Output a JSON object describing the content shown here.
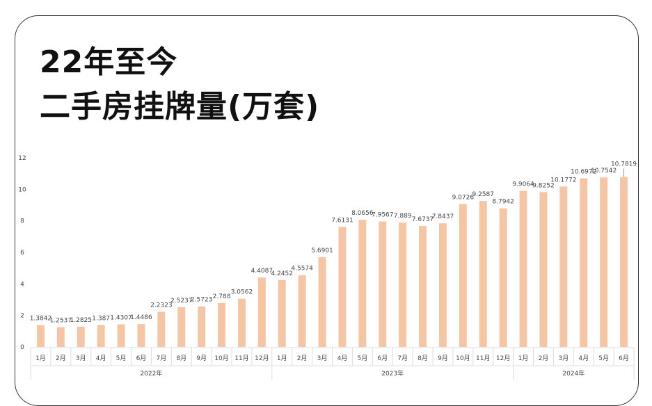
{
  "title_lines": [
    "22年至今",
    "二手房挂牌量(万套)"
  ],
  "colors": {
    "bar": "#f5c6a5",
    "axis": "#dddddd"
  },
  "chart_data": {
    "type": "bar",
    "title": "22年至今 二手房挂牌量(万套)",
    "categories": [
      "1月",
      "2月",
      "3月",
      "4月",
      "5月",
      "6月",
      "7月",
      "8月",
      "9月",
      "10月",
      "11月",
      "12月",
      "1月",
      "2月",
      "3月",
      "4月",
      "5月",
      "6月",
      "7月",
      "8月",
      "9月",
      "10月",
      "11月",
      "12月",
      "1月",
      "2月",
      "3月",
      "4月",
      "5月",
      "6月"
    ],
    "groups": [
      {
        "name": "2022年",
        "count": 12
      },
      {
        "name": "2023年",
        "count": 12
      },
      {
        "name": "2024年",
        "count": 6
      }
    ],
    "values": [
      1.3842,
      1.2537,
      1.2825,
      1.387,
      1.4307,
      1.4486,
      2.2323,
      2.5237,
      2.5723,
      2.788,
      3.0562,
      4.4087,
      4.2452,
      4.5574,
      5.6901,
      7.6131,
      8.0656,
      7.9567,
      7.889,
      7.6737,
      7.8437,
      9.0726,
      9.2587,
      8.7942,
      9.9064,
      9.8252,
      10.1772,
      10.6972,
      10.7542,
      10.7819
    ],
    "data_labels": [
      "1.3842",
      "1.2537",
      "1.2825",
      "1.387",
      "1.4307",
      "1.4486",
      "2.2323",
      "2.5237",
      "2.5723",
      "2.788",
      "3.0562",
      "4.4087",
      "4.2452",
      "4.5574",
      "5.6901",
      "7.6131",
      "8.0656",
      "7.9567",
      "7.889",
      "7.6737",
      "7.8437",
      "9.0726",
      "9.2587",
      "8.7942",
      "9.9064",
      "9.8252",
      "10.1772",
      "10.6972",
      "10.7542",
      "10.7819"
    ],
    "yticks": [
      "0",
      "2",
      "4",
      "6",
      "8",
      "10",
      "12"
    ],
    "ylim": [
      0,
      12
    ],
    "grid": false
  }
}
